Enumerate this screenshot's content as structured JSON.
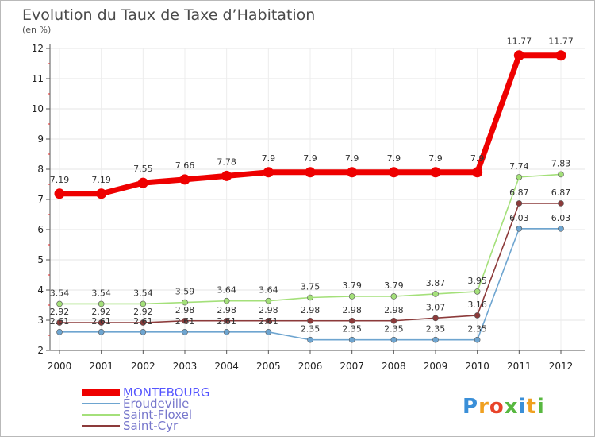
{
  "chart_data": {
    "type": "line",
    "title": "Evolution du Taux de Taxe d’Habitation",
    "subtitle": "(en %)",
    "x": [
      "2000",
      "2001",
      "2002",
      "2003",
      "2004",
      "2005",
      "2006",
      "2007",
      "2008",
      "2009",
      "2010",
      "2011",
      "2012"
    ],
    "yticks": [
      2,
      3,
      4,
      5,
      6,
      7,
      8,
      9,
      10,
      11,
      12
    ],
    "ylim": [
      2,
      12
    ],
    "legend_position": "bottom-left",
    "series": [
      {
        "name": "MONTEBOURG",
        "color": "#ee0000",
        "labels": [
          "7.19",
          "7.19",
          "7.55",
          "7.66",
          "7.78",
          "7.9",
          "7.9",
          "7.9",
          "7.9",
          "7.9",
          "7.9",
          "11.77",
          "11.77"
        ],
        "values": [
          7.19,
          7.19,
          7.55,
          7.66,
          7.78,
          7.9,
          7.9,
          7.9,
          7.9,
          7.9,
          7.9,
          11.77,
          11.77
        ]
      },
      {
        "name": "Éroudeville",
        "color": "#6ea5d0",
        "labels": [
          "2.61",
          "2.61",
          "2.61",
          "2.61",
          "2.61",
          "2.61",
          "2.35",
          "2.35",
          "2.35",
          "2.35",
          "2.35",
          "6.03",
          "6.03"
        ],
        "values": [
          2.61,
          2.61,
          2.61,
          2.61,
          2.61,
          2.61,
          2.35,
          2.35,
          2.35,
          2.35,
          2.35,
          6.03,
          6.03
        ]
      },
      {
        "name": "Saint-Floxel",
        "color": "#a4e07a",
        "labels": [
          "3.54",
          "3.54",
          "3.54",
          "3.59",
          "3.64",
          "3.64",
          "3.75",
          "3.79",
          "3.79",
          "3.87",
          "3.95",
          "7.74",
          "7.83"
        ],
        "values": [
          3.54,
          3.54,
          3.54,
          3.59,
          3.64,
          3.64,
          3.75,
          3.79,
          3.79,
          3.87,
          3.95,
          7.74,
          7.83
        ]
      },
      {
        "name": "Saint-Cyr",
        "color": "#8c3a3a",
        "labels": [
          "2.92",
          "2.92",
          "2.92",
          "2.98",
          "2.98",
          "2.98",
          "2.98",
          "2.98",
          "2.98",
          "3.07",
          "3.16",
          "6.87",
          "6.87"
        ],
        "values": [
          2.92,
          2.92,
          2.92,
          2.98,
          2.98,
          2.98,
          2.98,
          2.98,
          2.98,
          3.07,
          3.16,
          6.87,
          6.87
        ]
      }
    ]
  },
  "legend": {
    "items": [
      {
        "label": "MONTEBOURG",
        "color": "#ee0000",
        "text_color": "#5555ff"
      },
      {
        "label": "Éroudeville",
        "color": "#6ea5d0",
        "text_color": "#7777cc"
      },
      {
        "label": "Saint-Floxel",
        "color": "#a4e07a",
        "text_color": "#7777cc"
      },
      {
        "label": "Saint-Cyr",
        "color": "#8c3a3a",
        "text_color": "#7777cc"
      }
    ]
  },
  "logo": {
    "text": "Proxiti"
  }
}
